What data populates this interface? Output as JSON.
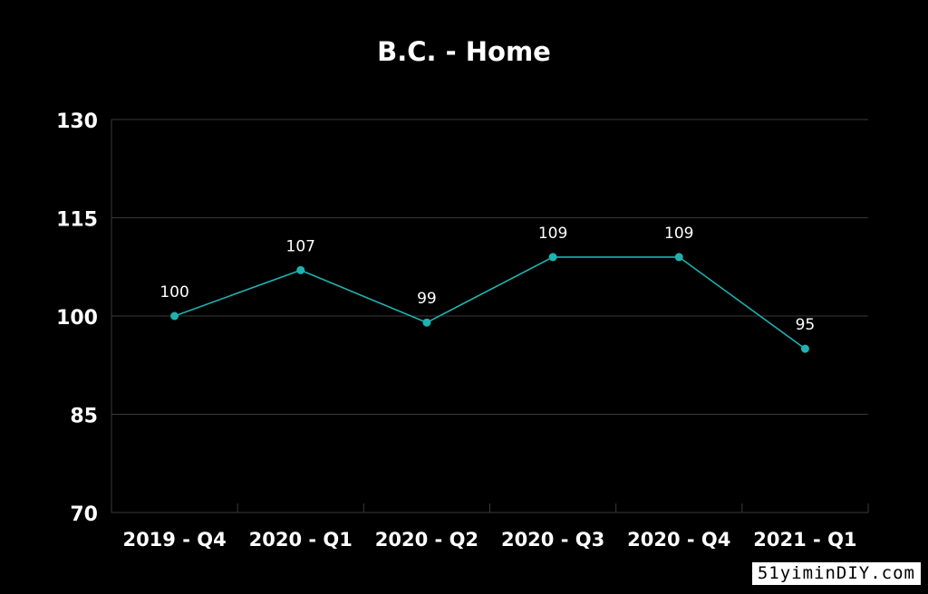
{
  "chart_data": {
    "type": "line",
    "title": "B.C. - Home",
    "xlabel": "",
    "ylabel": "",
    "categories": [
      "2019 - Q4",
      "2020 - Q1",
      "2020 - Q2",
      "2020 - Q3",
      "2020 - Q4",
      "2021 - Q1"
    ],
    "series": [
      {
        "values": [
          100,
          107,
          99,
          109,
          109,
          95
        ],
        "color": "#1fb2b0"
      }
    ],
    "data_labels": [
      "100",
      "107",
      "99",
      "109",
      "109",
      "95"
    ],
    "yticks": [
      70,
      85,
      100,
      115,
      130
    ],
    "ylim": [
      70,
      130
    ],
    "grid": true,
    "legend": "none"
  },
  "colors": {
    "background": "#000000",
    "text": "#ffffff",
    "grid": "#3a3a3a",
    "line": "#1fb2b0"
  },
  "watermark": "51yiminDIY.com"
}
